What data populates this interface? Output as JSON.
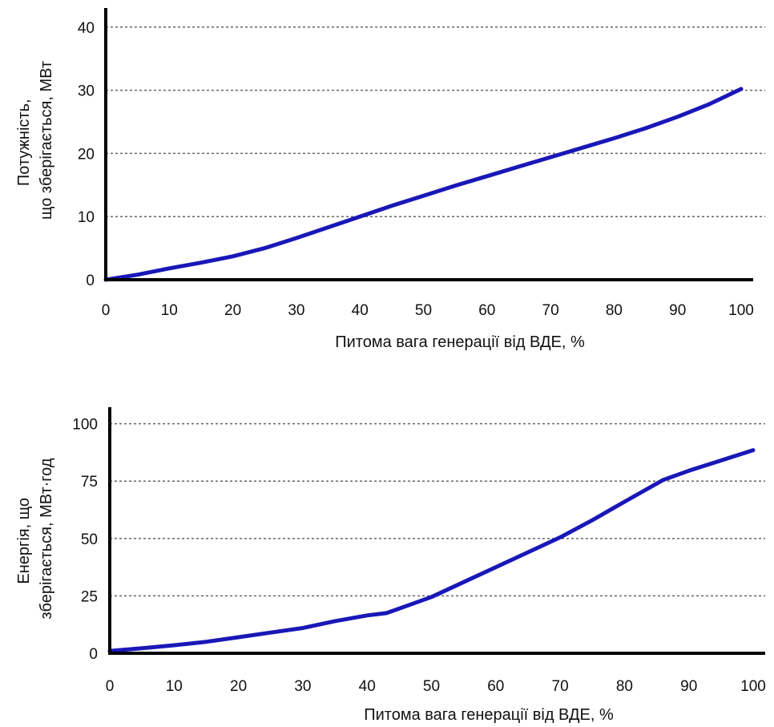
{
  "colors": {
    "line": "#1a17b8",
    "axis": "#000000",
    "grid": "#666666",
    "text": "#111111"
  },
  "chart_data": [
    {
      "type": "line",
      "xlabel": "Питома вага генерації від ВДЕ, %",
      "ylabel_lines": [
        "Потужність,",
        "що зберігається, МВт"
      ],
      "xlim": [
        0,
        100
      ],
      "ylim": [
        0,
        42
      ],
      "x_ticks": [
        0,
        10,
        20,
        30,
        40,
        50,
        60,
        70,
        80,
        90,
        100
      ],
      "x_tick_labels": [
        "0",
        "10",
        "20",
        "30",
        "40",
        "50",
        "60",
        "70",
        "80",
        "90",
        "100"
      ],
      "y_ticks": [
        0,
        10,
        20,
        30,
        40
      ],
      "y_tick_labels": [
        "0",
        "10",
        "20",
        "30",
        "40"
      ],
      "grid": "horizontal dashed",
      "series": [
        {
          "x": [
            0,
            5,
            10,
            15,
            20,
            25,
            30,
            35,
            40,
            45,
            50,
            55,
            60,
            65,
            70,
            75,
            80,
            85,
            90,
            95,
            100
          ],
          "y": [
            0,
            0.8,
            1.8,
            2.7,
            3.7,
            5.0,
            6.6,
            8.3,
            10.0,
            11.7,
            13.3,
            14.9,
            16.4,
            17.9,
            19.4,
            20.9,
            22.4,
            24.0,
            25.8,
            27.8,
            30.2
          ]
        }
      ]
    },
    {
      "type": "line",
      "xlabel": "Питома вага генерації від ВДЕ, %",
      "ylabel_lines": [
        "Енергія, що",
        "зберігається, МВт·год"
      ],
      "xlim": [
        0,
        100
      ],
      "ylim": [
        0,
        110
      ],
      "x_ticks": [
        0,
        10,
        20,
        30,
        40,
        50,
        60,
        70,
        80,
        90,
        100
      ],
      "x_tick_labels": [
        "0",
        "10",
        "20",
        "30",
        "40",
        "50",
        "60",
        "70",
        "80",
        "90",
        "100"
      ],
      "y_ticks": [
        0,
        25,
        50,
        75,
        100
      ],
      "y_tick_labels": [
        "0",
        "25",
        "50",
        "75",
        "100"
      ],
      "grid": "horizontal dashed",
      "series": [
        {
          "x": [
            0,
            5,
            10,
            15,
            20,
            25,
            30,
            35,
            40,
            43,
            45,
            50,
            55,
            60,
            65,
            70,
            75,
            80,
            86,
            90,
            95,
            100
          ],
          "y": [
            1,
            2.2,
            3.5,
            5.0,
            7.0,
            9.0,
            11.0,
            14.0,
            16.5,
            17.5,
            19.5,
            24.5,
            31.0,
            37.5,
            44.0,
            50.5,
            58.0,
            66.0,
            75.5,
            79.5,
            84.0,
            88.5
          ]
        }
      ]
    }
  ]
}
